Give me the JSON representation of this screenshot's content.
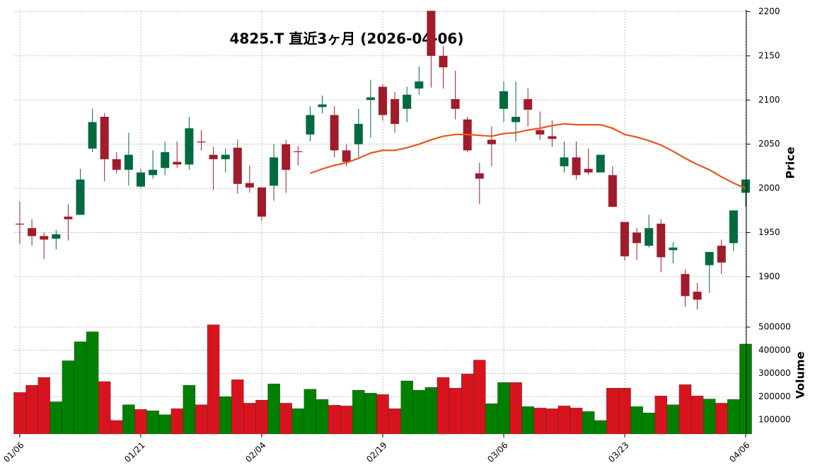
{
  "chart_data": {
    "type": "candlestick",
    "title": "4825.T  直近3ヶ月  (2026-04-06)",
    "categories": [
      "01/06",
      null,
      null,
      null,
      null,
      null,
      null,
      null,
      null,
      null,
      "01/21",
      null,
      null,
      null,
      null,
      null,
      null,
      null,
      null,
      null,
      "02/04",
      null,
      null,
      null,
      null,
      null,
      null,
      null,
      null,
      null,
      "02/19",
      null,
      null,
      null,
      null,
      null,
      null,
      null,
      null,
      null,
      "03/06",
      null,
      null,
      null,
      null,
      null,
      null,
      null,
      null,
      null,
      "03/23",
      null,
      null,
      null,
      null,
      null,
      null,
      null,
      null,
      null,
      "04/06"
    ],
    "open": [
      1960,
      1955,
      1946,
      1943,
      1968,
      1970,
      2045,
      2081,
      2033,
      2021,
      2002,
      2015,
      2023,
      2030,
      2027,
      2053,
      2038,
      2033,
      2046,
      2006,
      2001,
      2003,
      2050,
      2042,
      2061,
      2092,
      2083,
      2043,
      2050,
      2100,
      2115,
      2101,
      2090,
      2113,
      2201,
      2150,
      2101,
      2078,
      2017,
      2055,
      2090,
      2075,
      2101,
      2066,
      2059,
      2025,
      2035,
      2022,
      2018,
      2015,
      1962,
      1950,
      1935,
      1960,
      1930,
      1903,
      1883,
      1913,
      1935,
      1938,
      1995
    ],
    "high": [
      1985,
      1965,
      1950,
      1953,
      1982,
      2022,
      2090,
      2085,
      2041,
      2063,
      2022,
      2043,
      2053,
      2053,
      2081,
      2066,
      2047,
      2045,
      2055,
      2026,
      2001,
      2050,
      2055,
      2048,
      2093,
      2105,
      2093,
      2050,
      2090,
      2123,
      2118,
      2109,
      2115,
      2138,
      2201,
      2161,
      2133,
      2081,
      2029,
      2070,
      2121,
      2121,
      2113,
      2087,
      2077,
      2053,
      2053,
      2045,
      2038,
      2025,
      1962,
      1955,
      1970,
      1965,
      1939,
      1908,
      1893,
      1928,
      1942,
      1975,
      2010
    ],
    "low": [
      1937,
      1935,
      1920,
      1931,
      1941,
      1970,
      2041,
      2008,
      2017,
      2003,
      2001,
      2011,
      2015,
      2023,
      2021,
      2043,
      1998,
      2018,
      1994,
      1995,
      1963,
      1986,
      1995,
      2026,
      2053,
      2085,
      2035,
      2025,
      2035,
      2057,
      2077,
      2063,
      2075,
      2106,
      2114,
      2113,
      2078,
      2041,
      1982,
      2025,
      2075,
      2053,
      2070,
      2055,
      2047,
      2018,
      2010,
      2015,
      2018,
      1979,
      1918,
      1919,
      1933,
      1905,
      1915,
      1866,
      1863,
      1882,
      1903,
      1929,
      1979
    ],
    "close": [
      1959,
      1946,
      1942,
      1948,
      1965,
      2010,
      2075,
      2033,
      2021,
      2038,
      2018,
      2021,
      2041,
      2027,
      2068,
      2052,
      2033,
      2038,
      2005,
      2001,
      1968,
      2035,
      2021,
      2041,
      2083,
      2095,
      2043,
      2030,
      2073,
      2103,
      2083,
      2073,
      2106,
      2121,
      2150,
      2137,
      2090,
      2043,
      2011,
      2050,
      2110,
      2081,
      2089,
      2061,
      2056,
      2035,
      2015,
      2018,
      2038,
      1979,
      1923,
      1938,
      1955,
      1922,
      1933,
      1878,
      1874,
      1928,
      1916,
      1975,
      2010
    ],
    "up_color": "#006b3f",
    "down_color": "#a01c2a",
    "ylim": [
      1855,
      2202
    ],
    "yticks": [
      1900,
      1950,
      2000,
      2050,
      2100,
      2150,
      2200
    ],
    "ylabel": "Price",
    "grid": true,
    "series": [
      {
        "type": "line",
        "color": "#e8561a",
        "values": [
          null,
          null,
          null,
          null,
          null,
          null,
          null,
          null,
          null,
          null,
          null,
          null,
          null,
          null,
          null,
          null,
          null,
          null,
          null,
          null,
          null,
          null,
          null,
          null,
          2017,
          2022,
          2026,
          2029,
          2034,
          2040,
          2043,
          2043,
          2046,
          2050,
          2055,
          2059,
          2061,
          2061,
          2060,
          2059,
          2062,
          2063,
          2066,
          2068,
          2071,
          2073,
          2072,
          2072,
          2072,
          2068,
          2061,
          2058,
          2054,
          2049,
          2042,
          2034,
          2027,
          2021,
          2013,
          2006,
          2000
        ]
      }
    ],
    "volume": {
      "type": "bar",
      "values": [
        218000,
        249000,
        283000,
        178000,
        355000,
        437000,
        480000,
        265000,
        97000,
        165000,
        145000,
        139000,
        122000,
        148000,
        249000,
        165000,
        510000,
        200000,
        273000,
        172000,
        185000,
        255000,
        172000,
        148000,
        232000,
        188000,
        163000,
        160000,
        228000,
        215000,
        209000,
        148000,
        268000,
        228000,
        240000,
        283000,
        237000,
        298000,
        358000,
        170000,
        261000,
        261000,
        157000,
        151000,
        148000,
        160000,
        151000,
        136000,
        97000,
        237000,
        237000,
        157000,
        130000,
        203000,
        165000,
        252000,
        203000,
        190000,
        172000,
        188000,
        427000
      ],
      "up_color": "#008000",
      "down_color": "#d7141e",
      "ylim": [
        39000,
        546000
      ],
      "yticks": [
        100000,
        200000,
        300000,
        400000,
        500000
      ],
      "ylabel": "Volume"
    }
  }
}
